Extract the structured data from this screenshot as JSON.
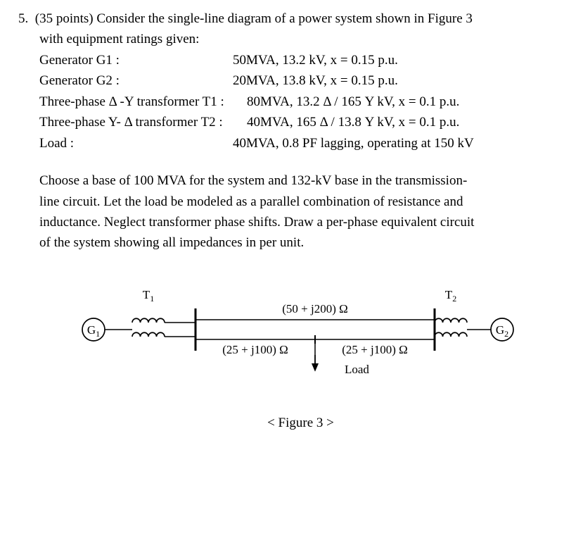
{
  "problem": {
    "number": "5.",
    "points": "(35 points)",
    "lead": "Consider the single-line diagram of a power system shown in Figure 3",
    "lead2": "with equipment ratings given:",
    "G1_label": "Generator G1 :",
    "G1_spec": "50MVA, 13.2 kV, x = 0.15 p.u.",
    "G2_label": "Generator G2 :",
    "G2_spec": "20MVA, 13.8 kV, x = 0.15 p.u.",
    "T1_label": "Three-phase Δ -Y transformer T1 :",
    "T1_spec": "80MVA, 13.2 Δ / 165 Y kV, x = 0.1 p.u.",
    "T2_label": "Three-phase Y- Δ transformer T2 :",
    "T2_spec": "40MVA, 165 Δ / 13.8 Y kV, x = 0.1 p.u.",
    "Load_label": "Load :",
    "Load_spec": "40MVA, 0.8 PF lagging, operating at 150 kV",
    "para2a": "Choose a base of 100 MVA for the system and 132-kV base in the transmission-",
    "para2b": "line circuit. Let the load be modeled as a parallel combination of resistance and",
    "para2c": "inductance. Neglect transformer phase shifts. Draw a per-phase equivalent circuit",
    "para2d": "of the system showing all impedances in per unit."
  },
  "figure": {
    "caption": "< Figure 3 >",
    "T1": "T₁",
    "T2": "T₂",
    "G1": "G₁",
    "G2": "G₂",
    "Ztop": "(50 + j200) Ω",
    "Zbl": "(25 + j100) Ω",
    "Zbr": "(25 + j100) Ω",
    "load": "Load",
    "stroke": "#000000",
    "fontFamily": "Times New Roman",
    "fontSize": 17,
    "subFontSize": 12
  },
  "layout": {
    "label_width_narrow": 275,
    "label_width_wide": 295
  }
}
